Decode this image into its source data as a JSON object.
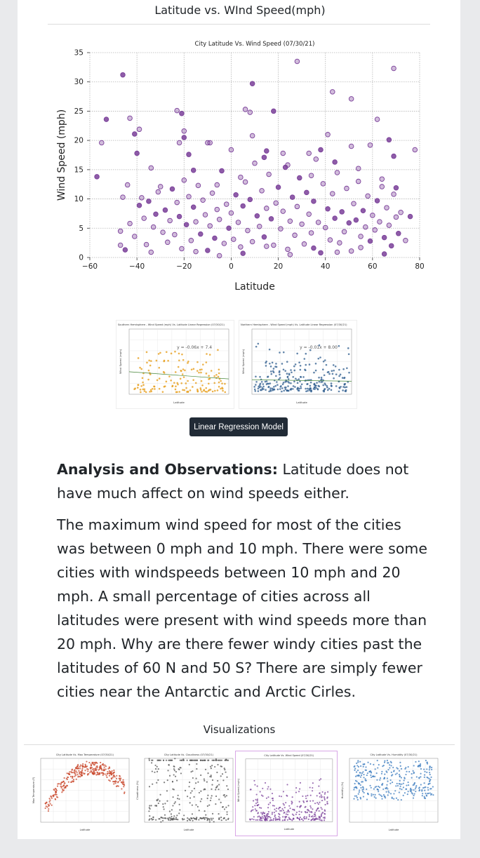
{
  "page": {
    "title": "Latitude vs. WInd Speed(mph)",
    "linear_regression_button": "Linear Regression Model",
    "analysis_label": "Analysis and Observations:",
    "analysis_intro": " Latitude does not have much affect on wind speeds either.",
    "analysis_body": "The maximum wind speed for most of the cities was between 0 mph and 10 mph. There were some cities with windspeeds between 10 mph and 20 mph. A small percentage of cities across all latitudes were present with wind speeds more than 20 mph. Why are there fewer windy cities past the latitudes of 60 N and 50 S? There are simply fewer cities near the Antarctic and Arctic Cirles.",
    "visualizations_title": "Visualizations"
  },
  "colors": {
    "page_bg": "#e9eaec",
    "main_point": "#7a3f99",
    "south_point": "#e69a10",
    "north_point": "#2d5c8e",
    "button_bg": "#212b36",
    "temp_point": "#c8462a",
    "cloud_point": "#555555",
    "humid_point": "#3a7bbf"
  },
  "chart_data": [
    {
      "type": "scatter",
      "title": "City Latitude Vs. Wind Speed (07/30/21)",
      "xlabel": "Latitude",
      "ylabel": "Wind Speed (mph)",
      "xlim": [
        -60,
        80
      ],
      "ylim": [
        0,
        35
      ],
      "xticks": [
        -60,
        -40,
        -20,
        0,
        20,
        40,
        60,
        80
      ],
      "yticks": [
        0,
        5,
        10,
        15,
        20,
        25,
        30,
        35
      ],
      "grid": true,
      "series": [
        {
          "points": [
            [
              -46,
              31.2
            ],
            [
              28,
              33.5
            ],
            [
              69,
              32.3
            ],
            [
              9,
              29.7
            ],
            [
              43,
              28.3
            ],
            [
              51,
              27.1
            ],
            [
              -53,
              23.6
            ],
            [
              -43,
              23.8
            ],
            [
              -23,
              25.1
            ],
            [
              -21,
              24.6
            ],
            [
              6,
              25.3
            ],
            [
              8,
              24.8
            ],
            [
              18,
              25.0
            ],
            [
              62,
              23.6
            ],
            [
              -55,
              19.6
            ],
            [
              -41,
              21.1
            ],
            [
              -39,
              21.9
            ],
            [
              -20,
              21.6
            ],
            [
              -20,
              20.5
            ],
            [
              9,
              20.8
            ],
            [
              41,
              21.0
            ],
            [
              67,
              20.1
            ],
            [
              78,
              18.4
            ],
            [
              -9,
              19.6
            ],
            [
              -57,
              13.8
            ],
            [
              -46,
              10.3
            ],
            [
              -44,
              12.4
            ],
            [
              -40,
              17.8
            ],
            [
              -34,
              15.3
            ],
            [
              -22,
              19.6
            ],
            [
              -18,
              17.6
            ],
            [
              -10,
              19.6
            ],
            [
              0,
              18.4
            ],
            [
              15,
              18.2
            ],
            [
              22,
              17.8
            ],
            [
              33,
              17.8
            ],
            [
              38,
              18.4
            ],
            [
              51,
              19.0
            ],
            [
              59,
              19.2
            ],
            [
              69,
              17.3
            ],
            [
              -47,
              4.5
            ],
            [
              -47,
              2.1
            ],
            [
              -45,
              1.3
            ],
            [
              -43,
              5.8
            ],
            [
              -41,
              3.6
            ],
            [
              -39,
              8.9
            ],
            [
              -37,
              6.7
            ],
            [
              -36,
              2.2
            ],
            [
              -35,
              9.6
            ],
            [
              -34,
              0.9
            ],
            [
              -33,
              5.2
            ],
            [
              -32,
              7.4
            ],
            [
              -31,
              11.2
            ],
            [
              -29,
              4.3
            ],
            [
              -28,
              8.1
            ],
            [
              -27,
              2.6
            ],
            [
              -26,
              6.3
            ],
            [
              -25,
              11.7
            ],
            [
              -24,
              3.9
            ],
            [
              -23,
              9.4
            ],
            [
              -22,
              7.0
            ],
            [
              -21,
              1.5
            ],
            [
              -20,
              13.2
            ],
            [
              -19,
              5.6
            ],
            [
              -18,
              10.4
            ],
            [
              -17,
              2.9
            ],
            [
              -16,
              8.6
            ],
            [
              -15,
              6.1
            ],
            [
              -14,
              12.3
            ],
            [
              -13,
              4.0
            ],
            [
              -12,
              9.8
            ],
            [
              -11,
              7.3
            ],
            [
              -10,
              1.2
            ],
            [
              -9,
              5.4
            ],
            [
              -8,
              11.0
            ],
            [
              -7,
              3.3
            ],
            [
              -6,
              8.2
            ],
            [
              -5,
              6.5
            ],
            [
              -4,
              14.8
            ],
            [
              -3,
              2.4
            ],
            [
              -2,
              9.1
            ],
            [
              -1,
              5.0
            ],
            [
              0,
              7.6
            ],
            [
              1,
              3.1
            ],
            [
              2,
              10.7
            ],
            [
              3,
              6.0
            ],
            [
              4,
              1.8
            ],
            [
              5,
              8.8
            ],
            [
              6,
              12.9
            ],
            [
              7,
              4.6
            ],
            [
              8,
              9.9
            ],
            [
              9,
              2.7
            ],
            [
              10,
              16.1
            ],
            [
              11,
              7.1
            ],
            [
              12,
              5.3
            ],
            [
              13,
              11.4
            ],
            [
              14,
              3.5
            ],
            [
              15,
              8.4
            ],
            [
              16,
              14.2
            ],
            [
              17,
              6.6
            ],
            [
              18,
              2.1
            ],
            [
              19,
              9.3
            ],
            [
              20,
              12.0
            ],
            [
              21,
              4.9
            ],
            [
              22,
              7.9
            ],
            [
              23,
              15.4
            ],
            [
              24,
              1.4
            ],
            [
              25,
              6.2
            ],
            [
              26,
              10.3
            ],
            [
              27,
              3.8
            ],
            [
              28,
              8.7
            ],
            [
              29,
              13.6
            ],
            [
              30,
              5.7
            ],
            [
              31,
              2.3
            ],
            [
              32,
              11.1
            ],
            [
              33,
              7.4
            ],
            [
              34,
              4.2
            ],
            [
              35,
              9.6
            ],
            [
              36,
              16.8
            ],
            [
              37,
              6.0
            ],
            [
              38,
              0.8
            ],
            [
              39,
              12.6
            ],
            [
              40,
              5.1
            ],
            [
              41,
              8.3
            ],
            [
              42,
              3.0
            ],
            [
              43,
              10.9
            ],
            [
              44,
              6.7
            ],
            [
              45,
              14.5
            ],
            [
              46,
              2.5
            ],
            [
              47,
              7.8
            ],
            [
              48,
              4.4
            ],
            [
              49,
              11.8
            ],
            [
              50,
              5.9
            ],
            [
              51,
              1.1
            ],
            [
              52,
              9.2
            ],
            [
              53,
              6.4
            ],
            [
              54,
              13.0
            ],
            [
              55,
              3.6
            ],
            [
              56,
              8.0
            ],
            [
              57,
              5.2
            ],
            [
              58,
              10.5
            ],
            [
              59,
              2.8
            ],
            [
              60,
              7.2
            ],
            [
              61,
              4.7
            ],
            [
              62,
              9.7
            ],
            [
              63,
              6.1
            ],
            [
              64,
              12.1
            ],
            [
              65,
              3.4
            ],
            [
              66,
              8.5
            ],
            [
              67,
              5.5
            ],
            [
              68,
              2.0
            ],
            [
              69,
              10.8
            ],
            [
              70,
              6.9
            ],
            [
              71,
              4.1
            ],
            [
              72,
              7.7
            ],
            [
              74,
              2.9
            ],
            [
              76,
              7.0
            ],
            [
              -38,
              10.2
            ],
            [
              -30,
              12.1
            ],
            [
              -16,
              14.9
            ],
            [
              -6,
              12.4
            ],
            [
              4,
              13.7
            ],
            [
              14,
              17.1
            ],
            [
              24,
              15.8
            ],
            [
              34,
              14.0
            ],
            [
              44,
              16.3
            ],
            [
              54,
              15.2
            ],
            [
              64,
              13.4
            ],
            [
              70,
              11.9
            ],
            [
              -15,
              1.0
            ],
            [
              -5,
              0.3
            ],
            [
              5,
              0.7
            ],
            [
              15,
              1.9
            ],
            [
              25,
              0.5
            ],
            [
              35,
              1.6
            ],
            [
              45,
              0.9
            ],
            [
              55,
              1.7
            ],
            [
              65,
              0.6
            ]
          ]
        }
      ]
    },
    {
      "type": "scatter",
      "title": "Southern Hemisphere - Wind Speed (mph) Vs. Latitude Linear Regression (07/30/21)",
      "xlabel": "Latitude",
      "ylabel": "Wind Speed (mph)",
      "annotation": "y = -0.06x + 7.4",
      "xlim": [
        -55,
        2
      ],
      "ylim": [
        0,
        31
      ],
      "regression": {
        "slope": -0.06,
        "intercept": 7.4
      }
    },
    {
      "type": "scatter",
      "title": "Northern Hemisphere - Wind Speed (mph) Vs. Latitude Linear Regression (07/30/21)",
      "xlabel": "Latitude",
      "ylabel": "Wind Speed (mph)",
      "annotation": "y = -0.01x + 8.00",
      "xlim": [
        -2,
        80
      ],
      "ylim": [
        0,
        36
      ],
      "regression": {
        "slope": -0.01,
        "intercept": 8.0
      }
    },
    {
      "type": "scatter",
      "title": "City Latitude Vs. Max Temperature (07/30/21)",
      "xlabel": "Latitude",
      "ylabel": "Max Temperature (F)"
    },
    {
      "type": "scatter",
      "title": "City Latitude Vs. Cloudiness (07/30/21)",
      "xlabel": "Latitude",
      "ylabel": "Cloudiness (%)"
    },
    {
      "type": "scatter",
      "title": "City Latitude Vs. Wind Speed (07/30/21)",
      "xlabel": "Latitude",
      "ylabel": "Wind Speed (mph)"
    },
    {
      "type": "scatter",
      "title": "City Latitude Vs. Humidity (07/30/21)",
      "xlabel": "Latitude",
      "ylabel": "Humidity (%)"
    }
  ]
}
